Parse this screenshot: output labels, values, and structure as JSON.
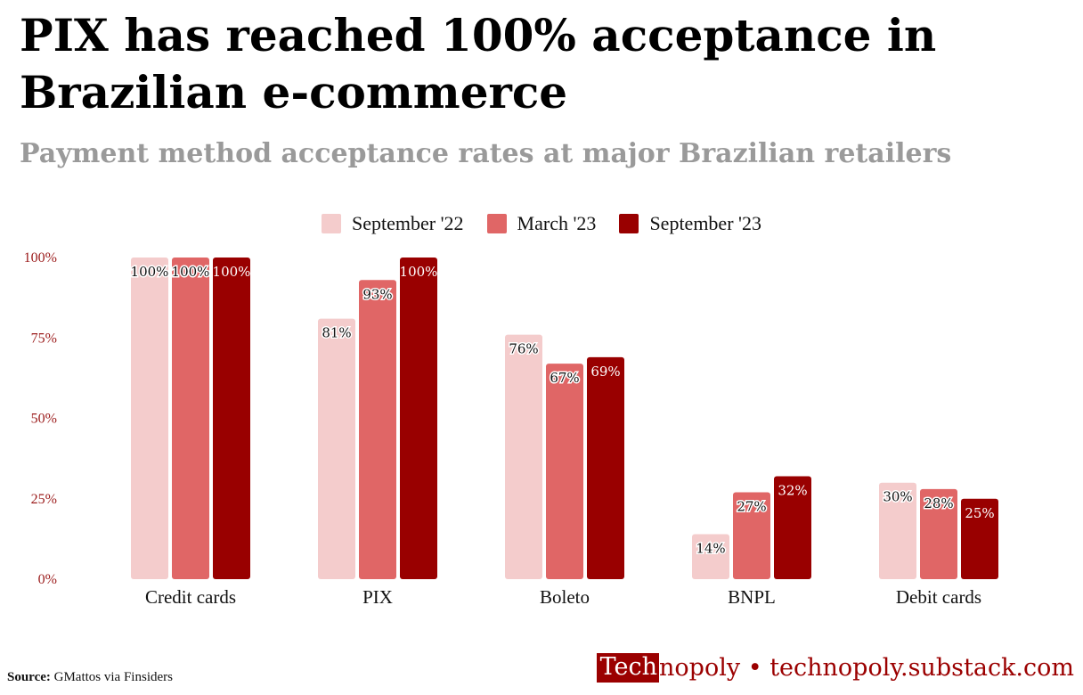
{
  "title": "PIX has reached 100% acceptance in Brazilian e-commerce",
  "subtitle": "Payment method acceptance rates at major Brazilian retailers",
  "colors": {
    "title": "#000000",
    "subtitle": "#9a9a9a",
    "axis_tick": "#9b1b1b",
    "brand": "#9b0000"
  },
  "chart_data": {
    "type": "bar",
    "categories": [
      "Credit cards",
      "PIX",
      "Boleto",
      "BNPL",
      "Debit cards"
    ],
    "series": [
      {
        "name": "September '22",
        "color": "#f4cccc",
        "values": [
          100,
          81,
          76,
          14,
          30
        ]
      },
      {
        "name": "March '23",
        "color": "#e06666",
        "values": [
          100,
          93,
          67,
          27,
          28
        ]
      },
      {
        "name": "September '23",
        "color": "#990000",
        "values": [
          100,
          100,
          69,
          32,
          25
        ]
      }
    ],
    "yticks": [
      "0%",
      "25%",
      "50%",
      "75%",
      "100%"
    ],
    "ylim": [
      0,
      100
    ],
    "grid": false,
    "legend_position": "top-center",
    "data_labels": [
      [
        "100%",
        "81%",
        "76%",
        "14%",
        "30%"
      ],
      [
        "100%",
        "93%",
        "67%",
        "27%",
        "28%"
      ],
      [
        "100%",
        "100%",
        "69%",
        "32%",
        "25%"
      ]
    ]
  },
  "footer": {
    "source_label": "Source:",
    "source_text": "GMattos via Finsiders",
    "brand_logo_part1": "Tech",
    "brand_logo_part2": "nopoly",
    "brand_separator": " • ",
    "brand_url": "technopoly.substack.com"
  }
}
